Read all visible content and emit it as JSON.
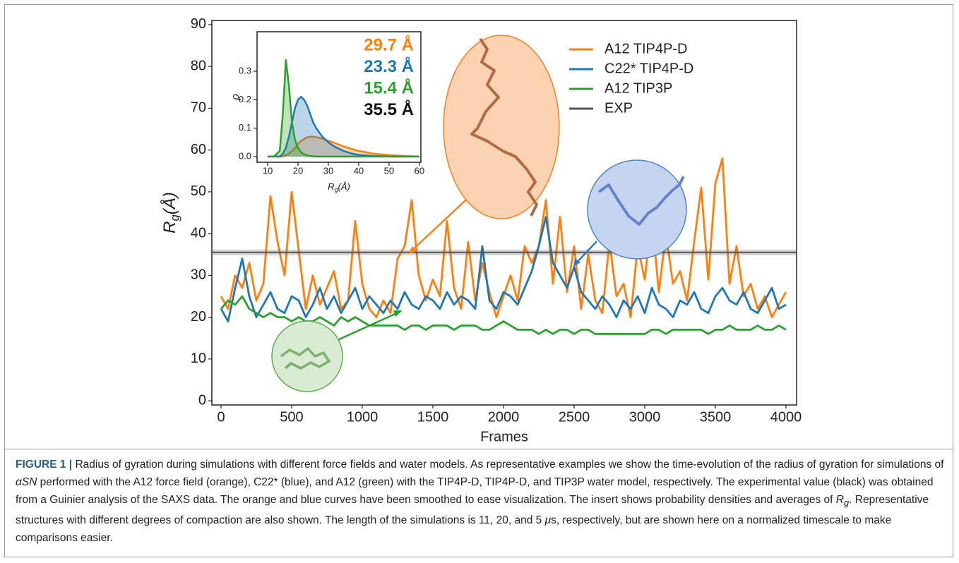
{
  "chart_data": [
    {
      "type": "line",
      "xlabel": "Frames",
      "ylabel": {
        "base": "R",
        "sub": "g",
        "rest": "(Å)"
      },
      "legend": "upper right",
      "xlim": [
        -65,
        4075
      ],
      "ylim": [
        -1,
        91
      ],
      "xticks": [
        0,
        500,
        1000,
        1500,
        2000,
        2500,
        3000,
        3500,
        4000
      ],
      "yticks": [
        0,
        10,
        20,
        30,
        40,
        50,
        60,
        70,
        80,
        90
      ],
      "x": [
        0,
        50,
        100,
        150,
        200,
        250,
        300,
        350,
        400,
        450,
        500,
        550,
        600,
        650,
        700,
        750,
        800,
        850,
        900,
        950,
        1000,
        1050,
        1100,
        1150,
        1200,
        1250,
        1300,
        1350,
        1400,
        1450,
        1500,
        1550,
        1600,
        1650,
        1700,
        1750,
        1800,
        1850,
        1900,
        1950,
        2000,
        2050,
        2100,
        2150,
        2200,
        2250,
        2300,
        2350,
        2400,
        2450,
        2500,
        2550,
        2600,
        2650,
        2700,
        2750,
        2800,
        2850,
        2900,
        2950,
        3000,
        3050,
        3100,
        3150,
        3200,
        3250,
        3300,
        3350,
        3400,
        3450,
        3500,
        3550,
        3600,
        3650,
        3700,
        3750,
        3800,
        3850,
        3900,
        3950,
        4000
      ],
      "series": [
        {
          "name": "A12 TIP4P-D",
          "color": "#ff7f0e",
          "values": [
            25,
            22,
            30,
            27,
            33,
            24,
            28,
            49,
            38,
            30,
            50,
            36,
            22,
            30,
            23,
            27,
            31,
            22,
            24,
            43,
            28,
            22,
            20,
            24,
            21,
            34,
            37,
            48,
            30,
            24,
            29,
            25,
            43,
            27,
            22,
            38,
            24,
            33,
            26,
            20,
            25,
            30,
            24,
            37,
            33,
            37,
            48,
            28,
            44,
            26,
            37,
            22,
            35,
            24,
            21,
            38,
            25,
            28,
            20,
            37,
            29,
            44,
            26,
            40,
            28,
            31,
            24,
            38,
            51,
            29,
            52,
            58,
            28,
            37,
            25,
            28,
            22,
            25,
            20,
            23,
            26
          ]
        },
        {
          "name": "C22* TIP4P-D",
          "color": "#1f77b4",
          "values": [
            22,
            19,
            27,
            34,
            25,
            20,
            23,
            26,
            22,
            21,
            25,
            24,
            20,
            23,
            27,
            22,
            25,
            21,
            24,
            27,
            22,
            25,
            23,
            21,
            24,
            22,
            26,
            23,
            22,
            25,
            24,
            22,
            26,
            23,
            25,
            24,
            22,
            37,
            24,
            22,
            26,
            25,
            23,
            27,
            31,
            37,
            44,
            33,
            30,
            27,
            32,
            26,
            24,
            22,
            25,
            23,
            20,
            24,
            22,
            25,
            21,
            27,
            23,
            22,
            20,
            24,
            23,
            26,
            22,
            21,
            25,
            27,
            24,
            23,
            26,
            22,
            21,
            24,
            27,
            22,
            23
          ]
        },
        {
          "name": "A12 TIP3P",
          "color": "#2ca02c",
          "values": [
            22,
            24,
            23,
            25,
            22,
            21,
            20,
            21,
            20,
            20,
            19,
            20,
            19,
            19,
            20,
            19,
            18,
            20,
            19,
            20,
            19,
            18,
            18,
            18,
            18,
            18,
            17,
            18,
            18,
            17,
            18,
            18,
            18,
            17,
            18,
            18,
            18,
            17,
            17,
            18,
            19,
            18,
            17,
            17,
            17,
            16,
            17,
            16,
            17,
            17,
            16,
            17,
            17,
            16,
            16,
            16,
            16,
            16,
            16,
            16,
            16,
            17,
            17,
            16,
            17,
            17,
            17,
            17,
            17,
            16,
            17,
            17,
            18,
            17,
            17,
            17,
            18,
            17,
            17,
            18,
            17
          ]
        },
        {
          "name": "EXP",
          "color": "#555555",
          "y": 35.5
        }
      ]
    },
    {
      "type": "line",
      "xlabel": {
        "base": "R",
        "sub": "g",
        "rest": "(Å)"
      },
      "ylabel": "ρ",
      "xlim": [
        6.5,
        60.5
      ],
      "ylim": [
        -0.02,
        0.439
      ],
      "xticks": [
        10,
        20,
        30,
        40,
        50,
        60
      ],
      "yticks": [
        {
          "value": 0,
          "label": "0.0"
        },
        0.1,
        0.2,
        0.3
      ],
      "x": [
        10,
        12,
        14,
        15,
        16,
        17,
        18,
        19,
        20,
        21,
        22,
        23,
        24,
        25,
        26,
        28,
        30,
        32,
        35,
        38,
        40,
        45,
        50,
        55,
        60
      ],
      "series": [
        {
          "color": "#ff7f0e",
          "values": [
            0,
            0,
            0,
            0,
            0.005,
            0.01,
            0.02,
            0.03,
            0.045,
            0.055,
            0.062,
            0.068,
            0.07,
            0.07,
            0.068,
            0.063,
            0.056,
            0.048,
            0.036,
            0.026,
            0.02,
            0.01,
            0.005,
            0.002,
            0
          ]
        },
        {
          "color": "#1f77b4",
          "values": [
            0,
            0,
            0,
            0.01,
            0.03,
            0.07,
            0.12,
            0.17,
            0.2,
            0.21,
            0.2,
            0.18,
            0.15,
            0.12,
            0.1,
            0.07,
            0.05,
            0.035,
            0.02,
            0.01,
            0.006,
            0.002,
            0,
            0,
            0
          ]
        },
        {
          "color": "#2ca02c",
          "values": [
            0,
            0,
            0.02,
            0.15,
            0.34,
            0.25,
            0.12,
            0.06,
            0.03,
            0.015,
            0.008,
            0.004,
            0.002,
            0.001,
            0,
            0,
            0,
            0,
            0,
            0,
            0,
            0,
            0,
            0,
            0
          ]
        }
      ],
      "annotations": [
        "29.7 Å",
        "23.3 Å",
        "15.4 Å",
        "35.5 Å"
      ],
      "annotation_colors": [
        "#ff7f0e",
        "#1f77b4",
        "#2ca02c",
        "#111111"
      ]
    }
  ],
  "caption": {
    "label": "FIGURE 1 |",
    "parts": [
      " Radius of gyration during simulations with different force fields and water models. As representative examples we show the time-evolution of the radius of gyration for simulations of ",
      "αSN",
      " performed with the A12 force field (orange), C22* (blue), and A12 (green) with the TIP4P-D, TIP4P-D, and TIP3P water model, respectively. The experimental value (black) was obtained from a Guinier analysis of the SAXS data. The orange and blue curves have been smoothed to ease visualization. The insert shows probability densities and averages of ",
      "R",
      "g",
      ". Representative structures with different degrees of compaction are also shown. The length of the simulations is 11, 20, and 5 ",
      "μ",
      "s, respectively, but are shown here on a normalized timescale to make comparisons easier."
    ]
  }
}
